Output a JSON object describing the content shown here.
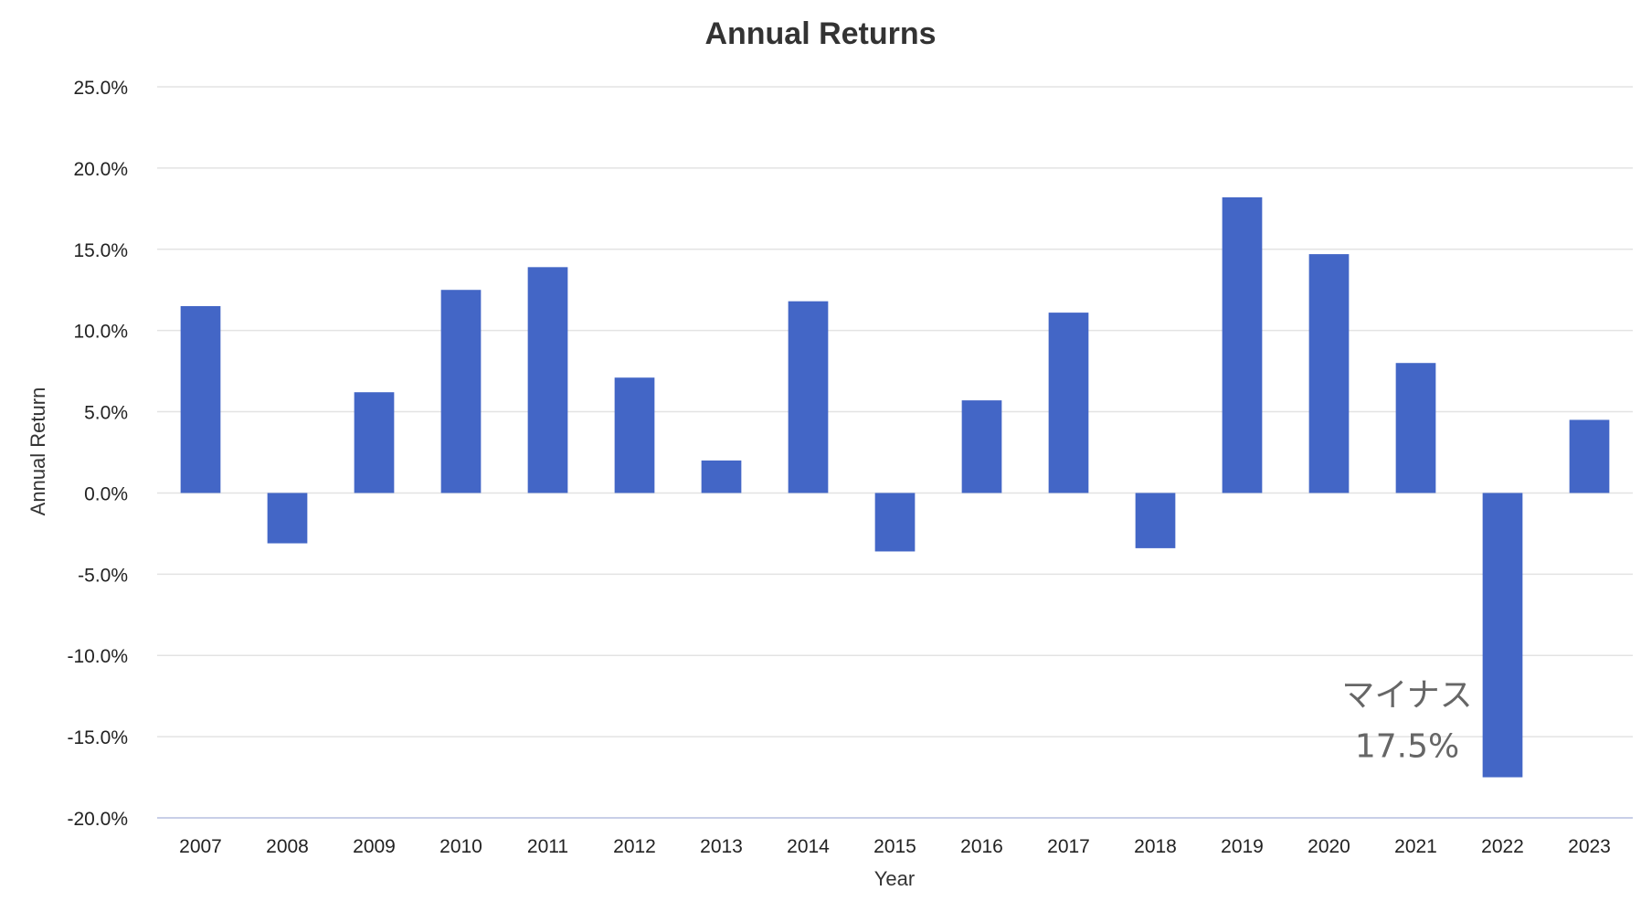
{
  "chart_data": {
    "type": "bar",
    "title": "Annual Returns",
    "xlabel": "Year",
    "ylabel": "Annual Return",
    "categories": [
      "2007",
      "2008",
      "2009",
      "2010",
      "2011",
      "2012",
      "2013",
      "2014",
      "2015",
      "2016",
      "2017",
      "2018",
      "2019",
      "2020",
      "2021",
      "2022",
      "2023"
    ],
    "series": [
      {
        "values": [
          11.5,
          -3.1,
          6.2,
          12.5,
          13.9,
          7.1,
          2.0,
          11.8,
          -3.6,
          5.7,
          11.1,
          -3.4,
          18.2,
          14.7,
          8.0,
          -17.5,
          4.5
        ]
      }
    ],
    "ylim": [
      -20,
      25
    ],
    "yticks": [
      25,
      20,
      15,
      10,
      5,
      0,
      -5,
      -10,
      -15,
      -20
    ],
    "ytick_labels": [
      "25.0%",
      "20.0%",
      "15.0%",
      "10.0%",
      "5.0%",
      "0.0%",
      "-5.0%",
      "-10.0%",
      "-15.0%",
      "-20.0%"
    ],
    "grid": true,
    "bar_color": "#4366c6",
    "annotation": {
      "target_category": "2022",
      "lines": [
        "マイナス",
        "17.5%"
      ]
    }
  }
}
